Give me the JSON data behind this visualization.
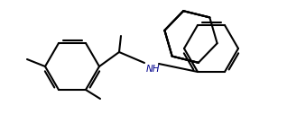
{
  "bg": "#ffffff",
  "line_color": "black",
  "lw": 1.5,
  "nh_color": "#00008b",
  "figsize": [
    3.18,
    1.47
  ],
  "dpi": 100
}
